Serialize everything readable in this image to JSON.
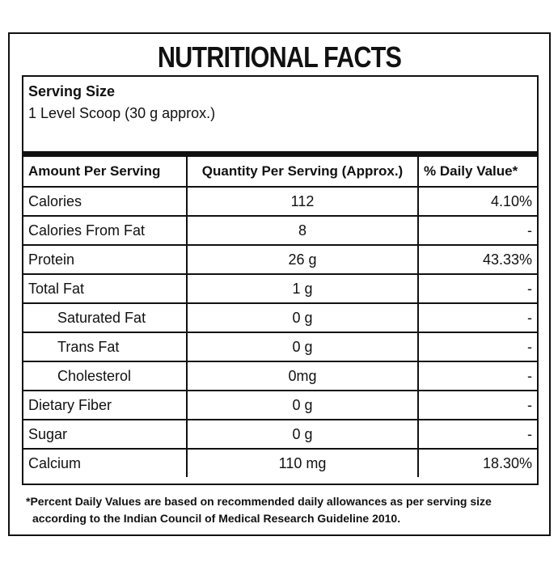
{
  "title": "NUTRITIONAL FACTS",
  "serving": {
    "label": "Serving Size",
    "value": "1 Level Scoop (30 g approx.)"
  },
  "table": {
    "header": [
      "Amount Per Serving",
      "Quantity Per Serving (Approx.)",
      "% Daily Value*"
    ],
    "rows": [
      [
        "Calories",
        "112",
        "4.10%"
      ],
      [
        "Calories From Fat",
        "8",
        "-"
      ],
      [
        "Protein",
        "26 g",
        "43.33%"
      ],
      [
        "Total Fat",
        "1 g",
        "-"
      ],
      [
        "Saturated Fat",
        "0 g",
        "-"
      ],
      [
        "Trans Fat",
        "0 g",
        "-"
      ],
      [
        "Cholesterol",
        "0mg",
        "-"
      ],
      [
        "Dietary Fiber",
        "0 g",
        "-"
      ],
      [
        "Sugar",
        "0 g",
        "-"
      ],
      [
        "Calcium",
        "110 mg",
        "18.30%"
      ]
    ]
  },
  "footnote": [
    "*Percent Daily Values are based on recommended daily allowances as per serving size",
    "according to the Indian Council of Medical Research Guideline 2010."
  ]
}
